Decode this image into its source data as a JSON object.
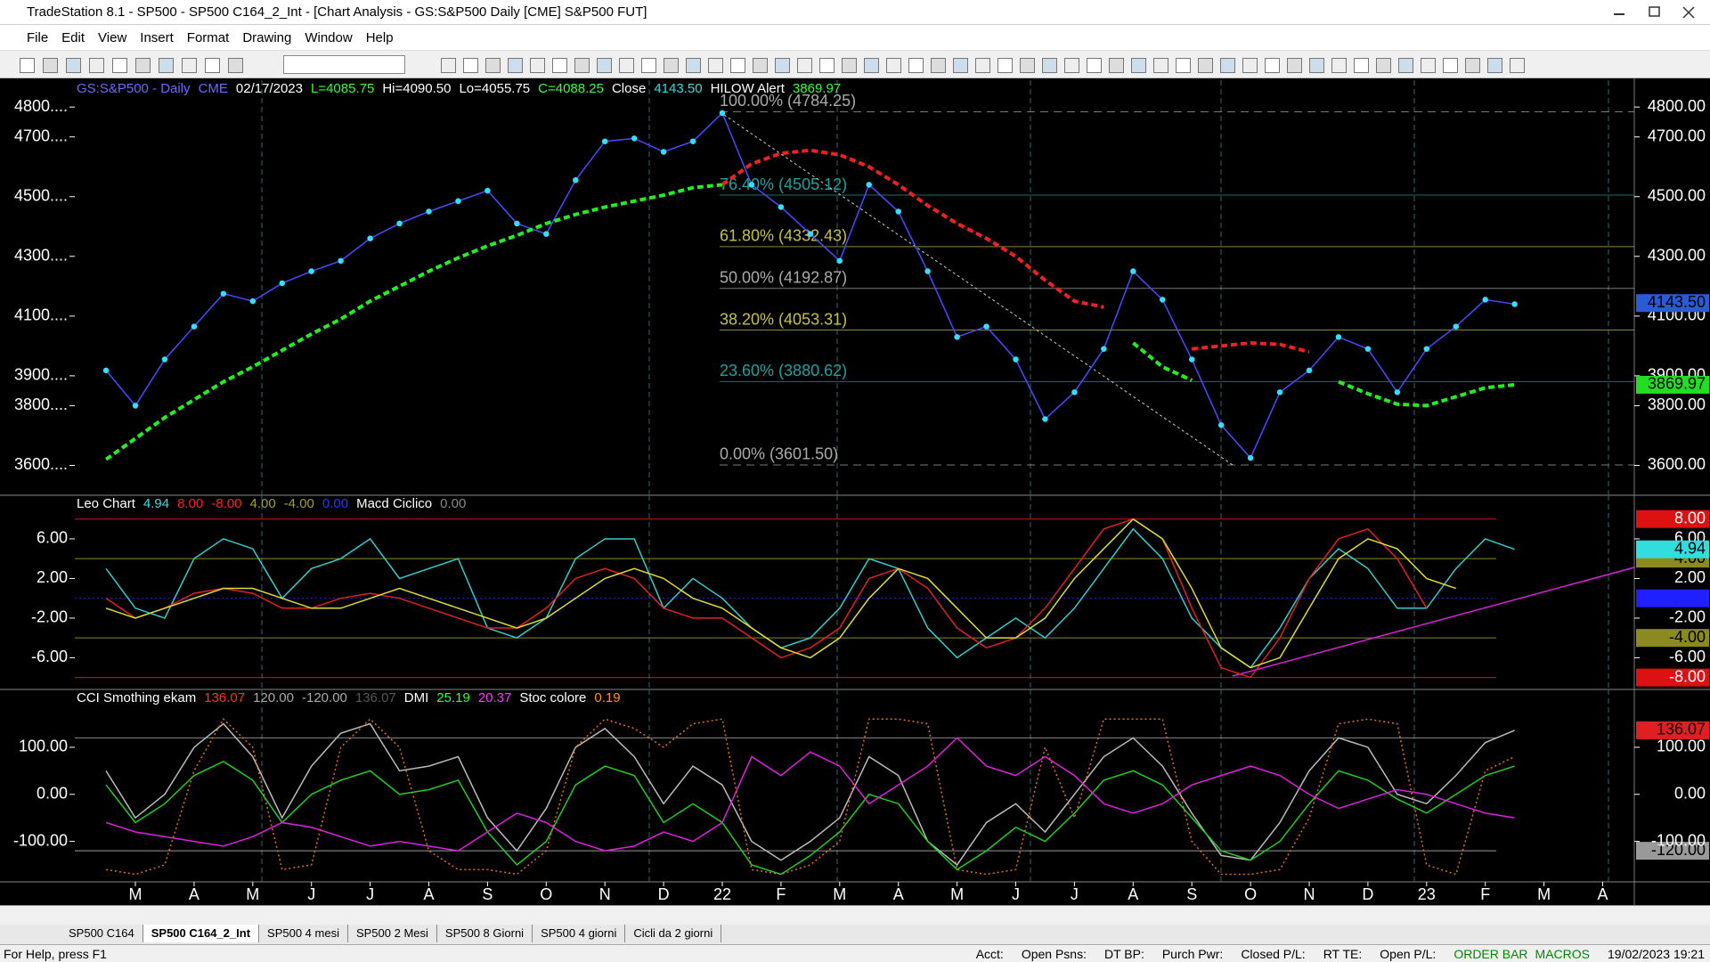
{
  "window": {
    "title": "TradeStation 8.1 - SP500 - SP500 C164_2_Int - [Chart Analysis - GS:S&P500  Daily  [CME] S&P500 FUT]",
    "menu": [
      "File",
      "Edit",
      "View",
      "Insert",
      "Format",
      "Drawing",
      "Window",
      "Help"
    ]
  },
  "chart_data": [
    {
      "type": "line",
      "header": [
        {
          "text": "GS:S&P500 - Daily",
          "color": "#6b6bff"
        },
        {
          "text": "CME",
          "color": "#6b6bff"
        },
        {
          "text": "02/17/2023",
          "color": "#ffffff"
        },
        {
          "text": "L=4085.75",
          "color": "#33ff33"
        },
        {
          "text": "Hi=4090.50",
          "color": "#ffffff"
        },
        {
          "text": "Lo=4055.75",
          "color": "#ffffff"
        },
        {
          "text": "C=4088.25",
          "color": "#33ff33"
        },
        {
          "text": "Close",
          "color": "#ffffff"
        },
        {
          "text": "4143.50",
          "color": "#33dddd"
        },
        {
          "text": "HILOW Alert",
          "color": "#ffffff"
        },
        {
          "text": "3869.97",
          "color": "#33ff33"
        }
      ],
      "categories": [
        null,
        "M",
        null,
        "A",
        null,
        "M",
        null,
        "J",
        null,
        "J",
        null,
        "A",
        null,
        "S",
        null,
        "O",
        null,
        "N",
        null,
        "D",
        null,
        "22",
        null,
        "F",
        null,
        "M",
        null,
        "A",
        null,
        "M",
        null,
        "J",
        null,
        "J",
        null,
        "A",
        null,
        "S",
        null,
        "O",
        null,
        "N",
        null,
        "D",
        null,
        "23",
        null,
        "F",
        null,
        "M",
        null,
        "A",
        null
      ],
      "series": [
        {
          "color": "#4a4aff",
          "dots": "#33e0ff",
          "values": [
            3918,
            3800,
            3955,
            4065,
            4175,
            4150,
            4210,
            4250,
            4285,
            4360,
            4410,
            4450,
            4485,
            4520,
            4410,
            4375,
            4555,
            4685,
            4695,
            4650,
            4685,
            4780,
            4540,
            4465,
            4375,
            4285,
            4540,
            4450,
            4250,
            4030,
            4065,
            3955,
            3755,
            3845,
            3990,
            4250,
            4155,
            3955,
            3735,
            3625,
            3845,
            3918,
            4030,
            3990,
            3845,
            3990,
            4065,
            4155,
            4140,
            null,
            null,
            null,
            null
          ]
        },
        {
          "color": "#22ee22",
          "style": "dashed",
          "values": [
            3620,
            3690,
            3760,
            3820,
            3880,
            3930,
            3985,
            4040,
            4090,
            4150,
            4200,
            4250,
            4295,
            4335,
            4370,
            4410,
            4440,
            4465,
            4485,
            4505,
            4530,
            4540,
            null,
            null,
            null,
            null,
            null,
            null,
            null,
            null,
            null,
            null,
            null,
            null,
            null,
            4010,
            3930,
            3885,
            null,
            null,
            null,
            null,
            3880,
            3840,
            3805,
            3800,
            3830,
            3860,
            3870,
            null,
            null,
            null,
            null
          ]
        },
        {
          "color": "#ee2222",
          "style": "dashed",
          "values": [
            null,
            null,
            null,
            null,
            null,
            null,
            null,
            null,
            null,
            null,
            null,
            null,
            null,
            null,
            null,
            null,
            null,
            null,
            null,
            null,
            null,
            4540,
            4610,
            4645,
            4655,
            4640,
            4600,
            4540,
            4470,
            4410,
            4360,
            4300,
            4220,
            4150,
            4130,
            null,
            null,
            3990,
            4000,
            4010,
            4005,
            3980,
            null,
            null,
            null,
            null,
            null,
            null,
            null,
            null,
            null,
            null,
            null
          ]
        }
      ],
      "ylim": [
        3500,
        4890
      ],
      "yticks": [
        {
          "value": 4800,
          "label": "4800.00"
        },
        {
          "value": 4700,
          "label": "4700.00"
        },
        {
          "value": 4500,
          "label": "4500.00"
        },
        {
          "value": 4300,
          "label": "4300.00"
        },
        {
          "value": 4100,
          "label": "4100.00"
        },
        {
          "value": 3900,
          "label": "3900.00"
        },
        {
          "value": 3800,
          "label": "3800.00"
        },
        {
          "value": 3600,
          "label": "3600.00"
        }
      ],
      "yticks_left": [
        {
          "value": 4800,
          "label": "4800...."
        },
        {
          "value": 4700,
          "label": "4700...."
        },
        {
          "value": 4500,
          "label": "4500...."
        },
        {
          "value": 4300,
          "label": "4300...."
        },
        {
          "value": 4100,
          "label": "4100...."
        },
        {
          "value": 3900,
          "label": "3900...."
        },
        {
          "value": 3800,
          "label": "3800...."
        },
        {
          "value": 3600,
          "label": "3600...."
        }
      ],
      "fib_levels": [
        {
          "value": 4784.25,
          "label": "100.00% (4784.25)",
          "color": "#aaaaaa",
          "dashed": true
        },
        {
          "value": 4505.12,
          "label": "76.40% (4505.12)",
          "color": "#20a0a0"
        },
        {
          "value": 4332.43,
          "label": "61.80% (4332.43)",
          "color": "#c8c040"
        },
        {
          "value": 4192.87,
          "label": "50.00% (4192.87)",
          "color": "#aaaaaa"
        },
        {
          "value": 4053.31,
          "label": "38.20% (4053.31)",
          "color": "#c8c040"
        },
        {
          "value": 3880.62,
          "label": "23.60% (3880.62)",
          "color": "#20a0a0"
        },
        {
          "value": 3601.5,
          "label": "0.00% (3601.50)",
          "color": "#aaaaaa",
          "dashed": true
        }
      ],
      "markers": [
        {
          "value": 4143.5,
          "label": "4143.50",
          "color": "#2a5bd7",
          "text_color": "#000000"
        },
        {
          "value": 3869.97,
          "label": "3869.97",
          "color": "#22dd22",
          "text_color": "#000000"
        }
      ]
    },
    {
      "type": "line",
      "header": [
        {
          "text": "Leo Chart",
          "color": "#ffffff"
        },
        {
          "text": "4.94",
          "color": "#33dddd"
        },
        {
          "text": "8.00",
          "color": "#ff2020"
        },
        {
          "text": "-8.00",
          "color": "#ff2020"
        },
        {
          "text": "4.00",
          "color": "#a0a020"
        },
        {
          "text": "-4.00",
          "color": "#a0a020"
        },
        {
          "text": "0.00",
          "color": "#3030ff"
        },
        {
          "text": "Macd Ciclico",
          "color": "#ffffff"
        },
        {
          "text": "0.00",
          "color": "#888888"
        }
      ],
      "series": [
        {
          "color": "#33cccc",
          "values": [
            3,
            -1,
            -2,
            4,
            6,
            5,
            0,
            3,
            4,
            6,
            2,
            3,
            4,
            -3,
            -4,
            -2,
            4,
            6,
            6,
            -1,
            2,
            0,
            -3,
            -5,
            -4,
            -1,
            4,
            3,
            -3,
            -6,
            -4,
            -2,
            -4,
            -1,
            3,
            7,
            4,
            -2,
            -5,
            -7,
            -3,
            2,
            5,
            3,
            -1,
            -1,
            3,
            6,
            4.94,
            null,
            null,
            null,
            null
          ]
        },
        {
          "color": "#dd2222",
          "values": [
            0,
            -2,
            -1,
            0.5,
            1,
            0.5,
            -1,
            -1,
            0,
            0.5,
            0,
            -1,
            -2,
            -3,
            -3,
            -1,
            2,
            3,
            2,
            -1,
            -2,
            -2,
            -4,
            -6,
            -5,
            -3,
            2,
            3,
            1,
            -3,
            -5,
            -4,
            -1,
            3,
            7,
            8,
            6,
            -1,
            -7,
            -8,
            -4,
            2,
            6,
            7,
            4,
            -1,
            null,
            null,
            null,
            null,
            null,
            null,
            null
          ]
        },
        {
          "color": "#dddd33",
          "values": [
            -1,
            -2,
            -1,
            0,
            1,
            1,
            0,
            -1,
            -1,
            0,
            1,
            0,
            -1,
            -2,
            -3,
            -2,
            0,
            2,
            3,
            2,
            0,
            -1,
            -3,
            -5,
            -6,
            -4,
            0,
            3,
            2,
            -1,
            -4,
            -4,
            -2,
            2,
            5,
            8,
            6,
            1,
            -5,
            -7,
            -6,
            -1,
            4,
            6,
            5,
            2,
            1,
            null,
            null,
            null,
            null,
            null,
            null
          ]
        }
      ],
      "ylim": [
        -9.2,
        10.4
      ],
      "yticks": [
        {
          "value": 6,
          "label": "6.00"
        },
        {
          "value": 2,
          "label": "2.00"
        },
        {
          "value": -2,
          "label": "-2.00"
        },
        {
          "value": -6,
          "label": "-6.00"
        }
      ],
      "levels": [
        {
          "value": 8,
          "label": "8.00",
          "color": "#dd1111",
          "text_color": "#ffffff"
        },
        {
          "value": 4,
          "label": "4.00",
          "color": "#8a8a20",
          "text_color": "#000000"
        },
        {
          "value": 0,
          "label": "0.00",
          "color": "#2020ff",
          "text_color": "#2020ff",
          "dotted": true
        },
        {
          "value": -4,
          "label": "-4.00",
          "color": "#8a8a20",
          "text_color": "#000000"
        },
        {
          "value": -8,
          "label": "-8.00",
          "color": "#dd1111",
          "text_color": "#ffffff"
        }
      ],
      "markers": [
        {
          "value": 4.94,
          "label": "4.94",
          "color": "#33dddd",
          "text_color": "#000000"
        }
      ]
    },
    {
      "type": "line",
      "header": [
        {
          "text": "CCI Smothing ekam",
          "color": "#ffffff"
        },
        {
          "text": "136.07",
          "color": "#ff3030"
        },
        {
          "text": "120.00",
          "color": "#aaaaaa"
        },
        {
          "text": "-120.00",
          "color": "#aaaaaa"
        },
        {
          "text": "136.07",
          "color": "#555555"
        },
        {
          "text": "DMI",
          "color": "#ffffff"
        },
        {
          "text": "25.19",
          "color": "#33ff33"
        },
        {
          "text": "20.37",
          "color": "#ff33ff"
        },
        {
          "text": "Stoc colore",
          "color": "#ffffff"
        },
        {
          "text": "0.19",
          "color": "#ff9020"
        }
      ],
      "series": [
        {
          "color": "#bbbbbb",
          "values": [
            50,
            -50,
            0,
            100,
            150,
            80,
            -50,
            60,
            130,
            150,
            50,
            60,
            80,
            -50,
            -120,
            -30,
            100,
            140,
            80,
            -20,
            60,
            20,
            -100,
            -140,
            -100,
            -50,
            80,
            40,
            -100,
            -150,
            -60,
            -20,
            -80,
            0,
            80,
            120,
            60,
            -40,
            -130,
            -140,
            -60,
            50,
            120,
            100,
            0,
            -20,
            40,
            110,
            136.07,
            null,
            null,
            null,
            null
          ]
        },
        {
          "color": "#22cc22",
          "values": [
            20,
            -60,
            -20,
            40,
            70,
            30,
            -60,
            0,
            30,
            50,
            0,
            10,
            30,
            -80,
            -150,
            -100,
            20,
            60,
            40,
            -60,
            -20,
            -60,
            -150,
            -170,
            -130,
            -80,
            0,
            -20,
            -100,
            -160,
            -120,
            -70,
            -100,
            -40,
            30,
            50,
            20,
            -50,
            -120,
            -140,
            -100,
            -20,
            50,
            30,
            -10,
            -40,
            0,
            40,
            60,
            null,
            null,
            null,
            null
          ]
        },
        {
          "color": "#dd22dd",
          "values": [
            -60,
            -80,
            -90,
            -100,
            -110,
            -90,
            -60,
            -70,
            -90,
            -110,
            -100,
            -110,
            -120,
            -80,
            -40,
            -60,
            -100,
            -120,
            -110,
            -80,
            -100,
            -60,
            80,
            40,
            90,
            60,
            -20,
            20,
            60,
            120,
            60,
            40,
            80,
            40,
            -20,
            -40,
            -20,
            20,
            40,
            60,
            40,
            0,
            -30,
            -10,
            10,
            0,
            -20,
            -40,
            -50,
            null,
            null,
            null,
            null
          ]
        },
        {
          "color": "#e07020",
          "style": "dotted",
          "values": [
            -160,
            -170,
            -150,
            50,
            160,
            100,
            -160,
            -150,
            100,
            160,
            100,
            -120,
            -160,
            -160,
            -170,
            -120,
            100,
            160,
            140,
            100,
            150,
            160,
            -160,
            -170,
            -150,
            -100,
            160,
            160,
            150,
            -160,
            -170,
            -160,
            100,
            -50,
            160,
            160,
            160,
            -100,
            -170,
            -170,
            -160,
            -50,
            150,
            160,
            150,
            -150,
            -170,
            50,
            80,
            null,
            null,
            null,
            null
          ]
        }
      ],
      "ylim": [
        -186,
        223
      ],
      "yticks": [
        {
          "value": 100,
          "label": "100.00"
        },
        {
          "value": 0,
          "label": "0.00"
        },
        {
          "value": -100,
          "label": "-100.00"
        }
      ],
      "levels": [
        {
          "value": 120,
          "color": "#888888"
        },
        {
          "value": -120,
          "label": "-120.00",
          "color": "#999999",
          "text_color": "#000000"
        }
      ],
      "markers": [
        {
          "value": 136.07,
          "label": "136.07",
          "color": "#e02020",
          "text_color": "#000000"
        }
      ]
    }
  ],
  "tabs": [
    "SP500 C164",
    "SP500 C164_2_Int",
    "SP500 4 mesi",
    "SP500  2 Mesi",
    "SP500 8 Giorni",
    "SP500 4 giorni",
    "Cicli da 2 giorni"
  ],
  "status": {
    "help": "For Help, press F1",
    "items": [
      "Acct:",
      "Open Psns:",
      "DT BP:",
      "Purch Pwr:",
      "Closed P/L:",
      "RT TE:",
      "Open P/L:"
    ],
    "order_bar": "ORDER BAR",
    "macros": "MACROS",
    "datetime": "19/02/2023 19:21"
  }
}
